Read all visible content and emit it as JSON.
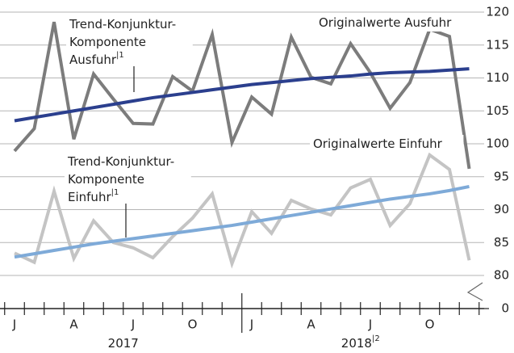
{
  "chart_data": {
    "type": "line",
    "categories": [
      "J",
      null,
      null,
      "A",
      null,
      null,
      "J",
      null,
      null,
      "O",
      null,
      null,
      "J",
      null,
      null,
      "A",
      null,
      null,
      "J",
      null,
      null,
      "O",
      null,
      null
    ],
    "years": [
      {
        "label": "2017"
      },
      {
        "label": "2018",
        "note": "|2"
      }
    ],
    "series": [
      {
        "name": "Originalwerte Ausfuhr",
        "color": "#7c7c7c",
        "values": [
          98.9,
          102.3,
          118.5,
          100.7,
          110.6,
          106.8,
          103.1,
          103.0,
          110.2,
          108.0,
          116.6,
          100.2,
          107.1,
          104.5,
          116.2,
          110.1,
          109.1,
          115.2,
          110.8,
          105.4,
          109.3,
          117.4,
          116.3,
          96.2
        ]
      },
      {
        "name": "Trend-Konjunktur-Komponente Ausfuhr",
        "color": "#2b3f8e",
        "values": [
          103.5,
          104.0,
          104.5,
          105.0,
          105.5,
          106.0,
          106.5,
          107.0,
          107.4,
          107.8,
          108.2,
          108.6,
          109.0,
          109.3,
          109.6,
          109.9,
          110.1,
          110.3,
          110.6,
          110.8,
          110.9,
          111.0,
          111.2,
          111.4
        ]
      },
      {
        "name": "Originalwerte Einfuhr",
        "color": "#c4c4c4",
        "values": [
          83.4,
          82.0,
          92.8,
          82.6,
          88.3,
          85.0,
          84.2,
          82.7,
          85.9,
          88.7,
          92.4,
          81.8,
          89.7,
          86.4,
          91.4,
          90.1,
          89.2,
          93.3,
          94.6,
          87.6,
          90.9,
          98.3,
          96.1,
          82.3
        ]
      },
      {
        "name": "Trend-Konjunktur-Komponente Einfuhr",
        "color": "#7eaad8",
        "values": [
          82.8,
          83.3,
          83.8,
          84.3,
          84.8,
          85.2,
          85.6,
          86.0,
          86.4,
          86.8,
          87.2,
          87.6,
          88.1,
          88.6,
          89.1,
          89.6,
          90.1,
          90.6,
          91.1,
          91.6,
          92.0,
          92.4,
          92.9,
          93.5
        ]
      }
    ],
    "annotations": [
      {
        "lines": [
          "Trend-Konjunktur-",
          "Komponente",
          "Ausfuhr"
        ],
        "note": "|1"
      },
      {
        "lines": [
          "Originalwerte Ausfuhr"
        ]
      },
      {
        "lines": [
          "Trend-Konjunktur-",
          "Komponente",
          "Einfuhr"
        ],
        "note": "|1"
      },
      {
        "lines": [
          "Originalwerte Einfuhr"
        ]
      }
    ],
    "ylim": [
      80,
      120
    ],
    "yticks": [
      0,
      80,
      85,
      90,
      95,
      100,
      105,
      110,
      115,
      120
    ],
    "axis_break": true,
    "y_axis_side": "right",
    "grid": true
  }
}
